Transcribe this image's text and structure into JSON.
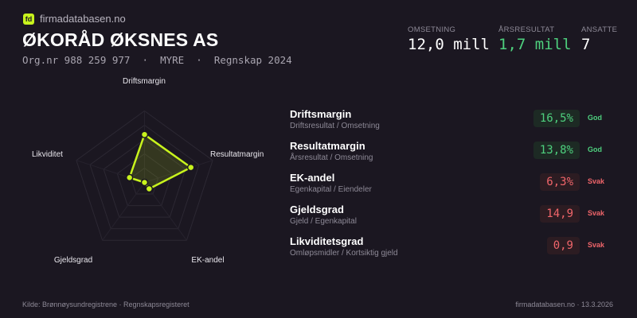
{
  "brand": {
    "logo_text": "fd",
    "site": "firmadatabasen.no",
    "accent": "#c8f31d"
  },
  "company": {
    "name": "ØKORÅD ØKSNES AS",
    "subtitle": "Org.nr 988 259 977  ·  MYRE  ·  Regnskap 2024"
  },
  "kpis": [
    {
      "label": "OMSETNING",
      "value": "12,0 mill",
      "color": "#ffffff"
    },
    {
      "label": "ÅRSRESULTAT",
      "value": "1,7 mill",
      "color": "#4ed07e"
    },
    {
      "label": "ANSATTE",
      "value": "7",
      "color": "#ffffff"
    }
  ],
  "radar": {
    "axes": [
      "Driftsmargin",
      "Resultatmargin",
      "EK-andel",
      "Gjeldsgrad",
      "Likviditet"
    ],
    "values": [
      0.67,
      0.68,
      0.11,
      0.0,
      0.22
    ],
    "rings": 5
  },
  "metrics": [
    {
      "name": "Driftsmargin",
      "formula": "Driftsresultat / Omsetning",
      "value": "16,5%",
      "status": "God",
      "rating": "good"
    },
    {
      "name": "Resultatmargin",
      "formula": "Årsresultat / Omsetning",
      "value": "13,8%",
      "status": "God",
      "rating": "good"
    },
    {
      "name": "EK-andel",
      "formula": "Egenkapital / Eiendeler",
      "value": "6,3%",
      "status": "Svak",
      "rating": "weak"
    },
    {
      "name": "Gjeldsgrad",
      "formula": "Gjeld / Egenkapital",
      "value": "14,9",
      "status": "Svak",
      "rating": "weak"
    },
    {
      "name": "Likviditetsgrad",
      "formula": "Omløpsmidler / Kortsiktig gjeld",
      "value": "0,9",
      "status": "Svak",
      "rating": "weak"
    }
  ],
  "footer": {
    "source": "Kilde: Brønnøysundregistrene · Regnskapsregisteret",
    "right": "firmadatabasen.no · 13.3.2026"
  }
}
